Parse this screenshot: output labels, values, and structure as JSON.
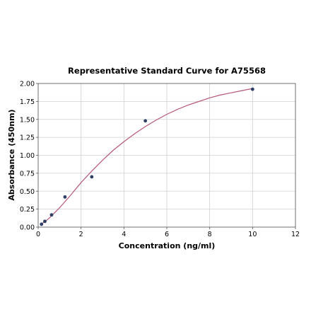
{
  "chart_data": {
    "type": "scatter",
    "title": "Representative Standard Curve for A75568",
    "xlabel": "Concentration (ng/ml)",
    "ylabel": "Absorbance (450nm)",
    "xlim": [
      0,
      12
    ],
    "ylim": [
      0,
      2
    ],
    "x_ticks": [
      "0",
      "2",
      "4",
      "6",
      "8",
      "10",
      "12"
    ],
    "y_ticks": [
      "0.00",
      "0.25",
      "0.50",
      "0.75",
      "1.00",
      "1.25",
      "1.50",
      "1.75",
      "2.00"
    ],
    "grid": true,
    "colors": {
      "points": "#2e3f66",
      "curve": "#b5577a",
      "grid": "#d0d0d0"
    },
    "series": [
      {
        "points": [
          {
            "x": 0.156,
            "y": 0.04
          },
          {
            "x": 0.3125,
            "y": 0.08
          },
          {
            "x": 0.625,
            "y": 0.17
          },
          {
            "x": 1.25,
            "y": 0.42
          },
          {
            "x": 2.5,
            "y": 0.7
          },
          {
            "x": 5,
            "y": 1.48
          },
          {
            "x": 10,
            "y": 1.92
          }
        ],
        "fit": {
          "type": "line",
          "x": [
            0.1,
            0.5,
            1,
            1.5,
            2,
            2.5,
            3,
            3.5,
            4,
            4.5,
            5,
            5.5,
            6,
            6.5,
            7,
            7.5,
            8,
            8.5,
            9,
            9.5,
            10
          ],
          "y": [
            0.03,
            0.12,
            0.27,
            0.44,
            0.62,
            0.78,
            0.93,
            1.07,
            1.19,
            1.3,
            1.4,
            1.49,
            1.57,
            1.64,
            1.7,
            1.75,
            1.8,
            1.84,
            1.87,
            1.9,
            1.93
          ]
        }
      }
    ]
  }
}
